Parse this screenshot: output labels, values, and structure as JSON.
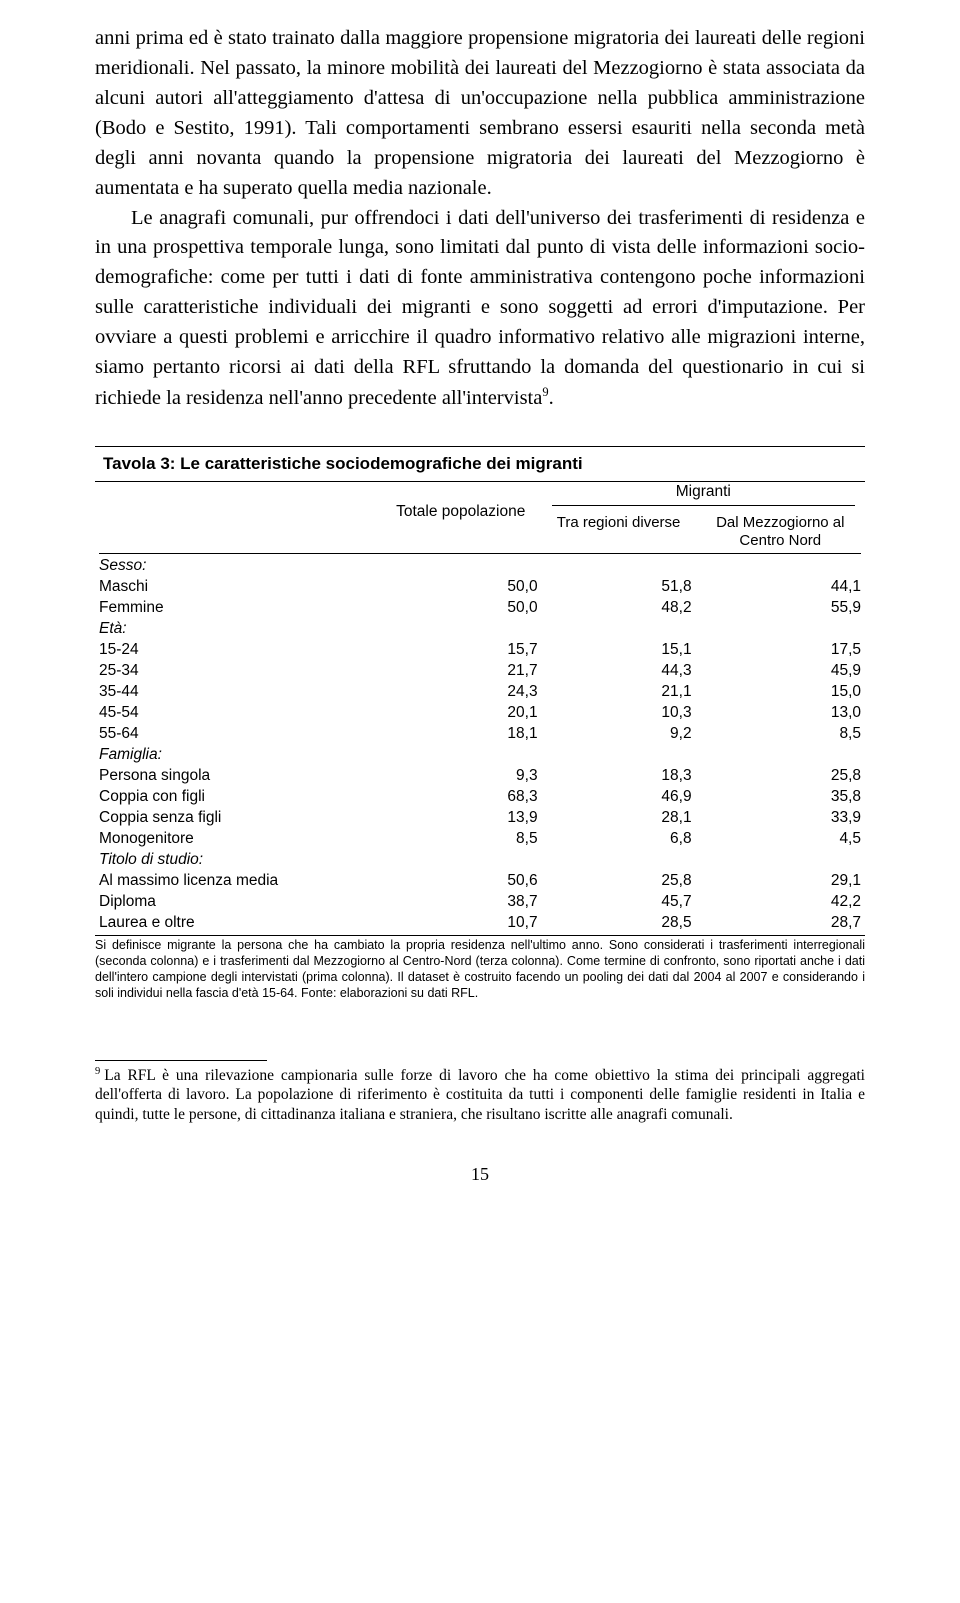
{
  "para1": "anni prima ed è stato trainato dalla maggiore propensione migratoria dei laureati delle regioni meridionali. Nel passato, la minore mobilità dei laureati del Mezzogiorno è stata associata da alcuni autori all'atteggiamento d'attesa di un'occupazione nella pubblica amministrazione (Bodo e Sestito, 1991). Tali comportamenti sembrano essersi esauriti nella seconda metà degli anni novanta quando la propensione migratoria dei laureati del Mezzogiorno è aumentata e ha superato quella media nazionale.",
  "para2_a": "Le anagrafi comunali, pur offrendoci i dati dell'universo dei trasferimenti di residenza e in una prospettiva temporale lunga, sono limitati dal punto di vista delle informazioni socio-demografiche: come per tutti i dati di fonte amministrativa contengono poche informazioni sulle caratteristiche individuali dei migranti e sono soggetti ad errori d'imputazione. Per ovviare a questi problemi e arricchire il quadro informativo relativo alle migrazioni interne, siamo pertanto ricorsi ai dati della RFL sfruttando la domanda del questionario in cui si richiede la residenza nell'anno precedente all'intervista",
  "para2_b": ".",
  "fnref": "9",
  "table": {
    "title": "Tavola 3: Le caratteristiche sociodemografiche dei migranti",
    "head_totpop": "Totale popolazione",
    "head_migranti": "Migranti",
    "head_sub1": "Tra regioni diverse",
    "head_sub2a": "Dal Mezzogiorno al",
    "head_sub2b": "Centro Nord",
    "sections": {
      "sesso": "Sesso:",
      "eta": "Età:",
      "famiglia": "Famiglia:",
      "titolo": "Titolo di studio:"
    },
    "rows": {
      "maschi": {
        "label": "Maschi",
        "a": "50,0",
        "b": "51,8",
        "c": "44,1"
      },
      "femmine": {
        "label": "Femmine",
        "a": "50,0",
        "b": "48,2",
        "c": "55,9"
      },
      "e1524": {
        "label": "15-24",
        "a": "15,7",
        "b": "15,1",
        "c": "17,5"
      },
      "e2534": {
        "label": "25-34",
        "a": "21,7",
        "b": "44,3",
        "c": "45,9"
      },
      "e3544": {
        "label": "35-44",
        "a": "24,3",
        "b": "21,1",
        "c": "15,0"
      },
      "e4554": {
        "label": "45-54",
        "a": "20,1",
        "b": "10,3",
        "c": "13,0"
      },
      "e5564": {
        "label": "55-64",
        "a": "18,1",
        "b": "9,2",
        "c": "8,5"
      },
      "singola": {
        "label": "Persona singola",
        "a": "9,3",
        "b": "18,3",
        "c": "25,8"
      },
      "cconfigli": {
        "label": "Coppia con figli",
        "a": "68,3",
        "b": "46,9",
        "c": "35,8"
      },
      "csenza": {
        "label": "Coppia senza figli",
        "a": "13,9",
        "b": "28,1",
        "c": "33,9"
      },
      "mono": {
        "label": "Monogenitore",
        "a": "8,5",
        "b": "6,8",
        "c": "4,5"
      },
      "media": {
        "label": "Al massimo licenza media",
        "a": "50,6",
        "b": "25,8",
        "c": "29,1"
      },
      "diploma": {
        "label": "Diploma",
        "a": "38,7",
        "b": "45,7",
        "c": "42,2"
      },
      "laurea": {
        "label": "Laurea e oltre",
        "a": "10,7",
        "b": "28,5",
        "c": "28,7"
      }
    },
    "note": "Si definisce migrante la persona che ha cambiato la propria residenza nell'ultimo anno. Sono considerati i trasferimenti interregionali (seconda colonna) e i trasferimenti dal Mezzogiorno al Centro-Nord (terza colonna). Come termine di confronto, sono riportati anche i dati dell'intero campione degli intervistati (prima colonna). Il dataset è costruito facendo un pooling dei dati dal 2004 al 2007 e considerando i soli individui nella fascia d'età 15-64. Fonte: elaborazioni su dati RFL."
  },
  "footnote": {
    "num": "9",
    "text": "La RFL è una rilevazione campionaria sulle forze di lavoro che ha come obiettivo la stima dei principali aggregati dell'offerta di lavoro. La popolazione di riferimento è costituita da tutti i componenti delle famiglie residenti in Italia e quindi, tutte le persone, di cittadinanza italiana e straniera, che risultano iscritte alle anagrafi comunali."
  },
  "pagenum": "15"
}
